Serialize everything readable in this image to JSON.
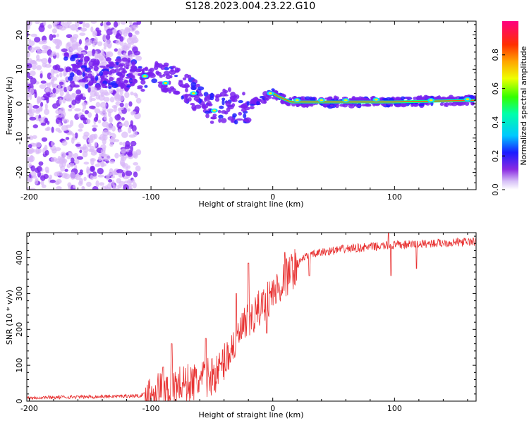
{
  "title": "S128.2023.004.23.22.G10",
  "colors": {
    "snr_line": "#e83030",
    "spectro_base": "#7a22ee",
    "spectro_light": "#d8b8f8"
  },
  "chart_data": [
    {
      "type": "heatmap",
      "name": "spectrogram",
      "xlabel": "Height of straight line (km)",
      "ylabel": "Frequency (Hz)",
      "xlim": [
        -202,
        167
      ],
      "ylim": [
        -25,
        24
      ],
      "xticks": [
        -200,
        -100,
        0,
        100
      ],
      "yticks": [
        -20,
        -10,
        0,
        10,
        20
      ],
      "colorbar": {
        "label": "Normalized spectral amplitude",
        "range": [
          0,
          1
        ],
        "ticks": [
          "0.0",
          "0.2",
          "0.4",
          "0.6",
          "0.8"
        ],
        "tick_values": [
          0,
          0.2,
          0.4,
          0.6,
          0.8
        ]
      },
      "ridge": {
        "points": [
          [
            -170,
            10
          ],
          [
            -150,
            9
          ],
          [
            -130,
            9
          ],
          [
            -110,
            8
          ],
          [
            -95,
            8
          ],
          [
            -80,
            6
          ],
          [
            -70,
            4
          ],
          [
            -60,
            2
          ],
          [
            -50,
            -1
          ],
          [
            -45,
            -2
          ],
          [
            -38,
            0
          ],
          [
            -30,
            -1
          ],
          [
            -22,
            -1
          ],
          [
            -15,
            0
          ],
          [
            -8,
            1
          ],
          [
            -3,
            3
          ],
          [
            0,
            3
          ],
          [
            5,
            2
          ],
          [
            15,
            0.5
          ],
          [
            60,
            0.5
          ],
          [
            100,
            0.5
          ],
          [
            167,
            1
          ]
        ],
        "peaks": [
          [
            -105,
            8
          ],
          [
            -88,
            6
          ],
          [
            -65,
            3
          ],
          [
            -48,
            -2
          ],
          [
            -2,
            3
          ],
          [
            20,
            1
          ],
          [
            40,
            1
          ],
          [
            60,
            1
          ],
          [
            85,
            1.2
          ],
          [
            130,
            1
          ],
          [
            160,
            1.3
          ]
        ]
      }
    },
    {
      "type": "line",
      "name": "snr",
      "xlabel": "Height of straight line (km)",
      "ylabel": "SNR (10 * v/v)",
      "xlim": [
        -202,
        167
      ],
      "ylim": [
        0,
        470
      ],
      "xticks": [
        -200,
        -100,
        0,
        100
      ],
      "yticks": [
        0,
        100,
        200,
        300,
        400
      ],
      "trend": [
        [
          -202,
          10
        ],
        [
          -150,
          12
        ],
        [
          -110,
          15
        ],
        [
          -100,
          25
        ],
        [
          -80,
          45
        ],
        [
          -60,
          55
        ],
        [
          -45,
          80
        ],
        [
          -35,
          140
        ],
        [
          -25,
          200
        ],
        [
          -15,
          240
        ],
        [
          -5,
          280
        ],
        [
          5,
          320
        ],
        [
          15,
          360
        ],
        [
          25,
          400
        ],
        [
          40,
          415
        ],
        [
          60,
          425
        ],
        [
          80,
          430
        ],
        [
          100,
          435
        ],
        [
          130,
          440
        ],
        [
          167,
          445
        ]
      ],
      "spikes": [
        [
          -90,
          95
        ],
        [
          -83,
          160
        ],
        [
          -55,
          175
        ],
        [
          -30,
          300
        ],
        [
          -20,
          385
        ],
        [
          -10,
          240
        ],
        [
          10,
          415
        ],
        [
          30,
          350
        ],
        [
          95,
          470
        ],
        [
          -5,
          190
        ],
        [
          97,
          350
        ],
        [
          118,
          370
        ]
      ]
    }
  ]
}
